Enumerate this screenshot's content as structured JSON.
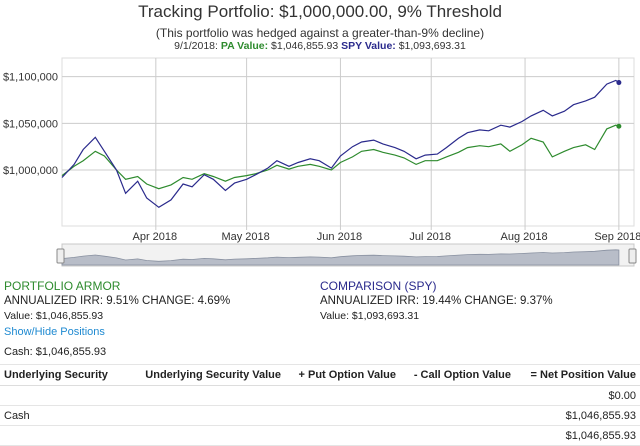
{
  "header": {
    "title": "Tracking Portfolio: $1,000,000.00, 9% Threshold",
    "subtitle": "(This portfolio was hedged against a greater-than-9% decline)",
    "legend_date": "9/1/2018:",
    "legend_pa_label": "PA Value:",
    "legend_pa_value": "$1,046,855.93",
    "legend_spy_label": "SPY Value:",
    "legend_spy_value": "$1,093,693.31"
  },
  "colors": {
    "pa": "#2e8b2e",
    "spy": "#2a2a8c",
    "link": "#1f8ad1",
    "grid": "#cccccc"
  },
  "chart_data": {
    "type": "line",
    "ylim": [
      940000,
      1120000
    ],
    "xlim": [
      "2018-03-01",
      "2018-09-06"
    ],
    "y_ticks": [
      {
        "value": 1000000,
        "label": "$1,000,000"
      },
      {
        "value": 1050000,
        "label": "$1,050,000"
      },
      {
        "value": 1100000,
        "label": "$1,100,000"
      }
    ],
    "x_ticks": [
      {
        "date": "2018-04-01",
        "label": "Apr 2018"
      },
      {
        "date": "2018-05-01",
        "label": "May 2018"
      },
      {
        "date": "2018-06-01",
        "label": "Jun 2018"
      },
      {
        "date": "2018-07-01",
        "label": "Jul 2018"
      },
      {
        "date": "2018-08-01",
        "label": "Aug 2018"
      },
      {
        "date": "2018-09-01",
        "label": "Sep 2018"
      }
    ],
    "series": [
      {
        "name": "PA Value",
        "points": [
          [
            "2018-03-01",
            994000
          ],
          [
            "2018-03-05",
            1004000
          ],
          [
            "2018-03-08",
            1010000
          ],
          [
            "2018-03-12",
            1020000
          ],
          [
            "2018-03-15",
            1015000
          ],
          [
            "2018-03-19",
            1000000
          ],
          [
            "2018-03-22",
            990000
          ],
          [
            "2018-03-26",
            993000
          ],
          [
            "2018-03-29",
            985000
          ],
          [
            "2018-04-02",
            980000
          ],
          [
            "2018-04-06",
            984000
          ],
          [
            "2018-04-10",
            992000
          ],
          [
            "2018-04-13",
            990000
          ],
          [
            "2018-04-17",
            996000
          ],
          [
            "2018-04-20",
            993000
          ],
          [
            "2018-04-24",
            988000
          ],
          [
            "2018-04-27",
            992000
          ],
          [
            "2018-05-01",
            994000
          ],
          [
            "2018-05-04",
            996000
          ],
          [
            "2018-05-08",
            1000000
          ],
          [
            "2018-05-11",
            1005000
          ],
          [
            "2018-05-15",
            1001000
          ],
          [
            "2018-05-18",
            1004000
          ],
          [
            "2018-05-22",
            1006000
          ],
          [
            "2018-05-25",
            1004000
          ],
          [
            "2018-05-29",
            1000000
          ],
          [
            "2018-06-01",
            1008000
          ],
          [
            "2018-06-05",
            1014000
          ],
          [
            "2018-06-08",
            1020000
          ],
          [
            "2018-06-12",
            1022000
          ],
          [
            "2018-06-15",
            1019000
          ],
          [
            "2018-06-19",
            1016000
          ],
          [
            "2018-06-22",
            1013000
          ],
          [
            "2018-06-26",
            1006000
          ],
          [
            "2018-06-29",
            1010000
          ],
          [
            "2018-07-03",
            1010000
          ],
          [
            "2018-07-06",
            1014000
          ],
          [
            "2018-07-10",
            1019000
          ],
          [
            "2018-07-13",
            1024000
          ],
          [
            "2018-07-17",
            1026000
          ],
          [
            "2018-07-20",
            1025000
          ],
          [
            "2018-07-24",
            1028000
          ],
          [
            "2018-07-27",
            1020000
          ],
          [
            "2018-07-31",
            1027000
          ],
          [
            "2018-08-03",
            1034000
          ],
          [
            "2018-08-07",
            1030000
          ],
          [
            "2018-08-10",
            1014000
          ],
          [
            "2018-08-14",
            1020000
          ],
          [
            "2018-08-17",
            1024000
          ],
          [
            "2018-08-21",
            1027000
          ],
          [
            "2018-08-24",
            1022000
          ],
          [
            "2018-08-28",
            1044000
          ],
          [
            "2018-08-31",
            1048000
          ],
          [
            "2018-09-01",
            1046856
          ]
        ]
      },
      {
        "name": "SPY Value",
        "points": [
          [
            "2018-03-01",
            992000
          ],
          [
            "2018-03-05",
            1006000
          ],
          [
            "2018-03-08",
            1022000
          ],
          [
            "2018-03-12",
            1035000
          ],
          [
            "2018-03-15",
            1020000
          ],
          [
            "2018-03-19",
            1000000
          ],
          [
            "2018-03-22",
            975000
          ],
          [
            "2018-03-26",
            988000
          ],
          [
            "2018-03-29",
            970000
          ],
          [
            "2018-04-02",
            960000
          ],
          [
            "2018-04-06",
            968000
          ],
          [
            "2018-04-10",
            985000
          ],
          [
            "2018-04-13",
            982000
          ],
          [
            "2018-04-17",
            995000
          ],
          [
            "2018-04-20",
            990000
          ],
          [
            "2018-04-24",
            978000
          ],
          [
            "2018-04-27",
            986000
          ],
          [
            "2018-05-01",
            990000
          ],
          [
            "2018-05-04",
            995000
          ],
          [
            "2018-05-08",
            1002000
          ],
          [
            "2018-05-11",
            1010000
          ],
          [
            "2018-05-15",
            1004000
          ],
          [
            "2018-05-18",
            1008000
          ],
          [
            "2018-05-22",
            1012000
          ],
          [
            "2018-05-25",
            1010000
          ],
          [
            "2018-05-29",
            1002000
          ],
          [
            "2018-06-01",
            1015000
          ],
          [
            "2018-06-05",
            1025000
          ],
          [
            "2018-06-08",
            1030000
          ],
          [
            "2018-06-12",
            1032000
          ],
          [
            "2018-06-15",
            1028000
          ],
          [
            "2018-06-19",
            1024000
          ],
          [
            "2018-06-22",
            1020000
          ],
          [
            "2018-06-26",
            1012000
          ],
          [
            "2018-06-29",
            1016000
          ],
          [
            "2018-07-03",
            1017000
          ],
          [
            "2018-07-06",
            1024000
          ],
          [
            "2018-07-10",
            1034000
          ],
          [
            "2018-07-13",
            1040000
          ],
          [
            "2018-07-17",
            1043000
          ],
          [
            "2018-07-20",
            1042000
          ],
          [
            "2018-07-24",
            1048000
          ],
          [
            "2018-07-27",
            1046000
          ],
          [
            "2018-07-31",
            1052000
          ],
          [
            "2018-08-03",
            1058000
          ],
          [
            "2018-08-07",
            1064000
          ],
          [
            "2018-08-10",
            1058000
          ],
          [
            "2018-08-14",
            1063000
          ],
          [
            "2018-08-17",
            1070000
          ],
          [
            "2018-08-21",
            1074000
          ],
          [
            "2018-08-24",
            1078000
          ],
          [
            "2018-08-28",
            1092000
          ],
          [
            "2018-08-31",
            1096000
          ],
          [
            "2018-09-01",
            1093693
          ]
        ]
      }
    ]
  },
  "summary": {
    "pa_title": "PORTFOLIO ARMOR",
    "pa_irr": "ANNUALIZED IRR: 9.51% CHANGE: 4.69%",
    "pa_value": "Value: $1,046,855.93",
    "spy_title": "COMPARISON (SPY)",
    "spy_irr": "ANNUALIZED IRR: 19.44% CHANGE: 9.37%",
    "spy_value": "Value: $1,093,693.31"
  },
  "positions": {
    "toggle_label": "Show/Hide Positions",
    "cash_line": "Cash: $1,046,855.93",
    "columns": [
      "Underlying Security",
      "Underlying Security Value",
      "+ Put Option Value",
      "- Call Option Value",
      "= Net Position Value"
    ],
    "rows": [
      [
        "",
        "",
        "",
        "",
        "$0.00"
      ],
      [
        "Cash",
        "",
        "",
        "",
        "$1,046,855.93"
      ],
      [
        "",
        "",
        "",
        "",
        "$1,046,855.93"
      ]
    ]
  }
}
